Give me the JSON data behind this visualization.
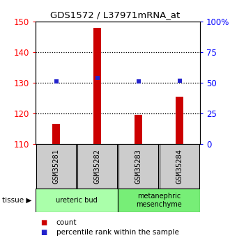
{
  "title": "GDS1572 / L37971mRNA_at",
  "samples": [
    "GSM35281",
    "GSM35282",
    "GSM35283",
    "GSM35284"
  ],
  "counts": [
    116.5,
    148.0,
    119.5,
    125.5
  ],
  "percentiles": [
    51.0,
    54.0,
    51.0,
    52.0
  ],
  "ylim_left": [
    110,
    150
  ],
  "ylim_right": [
    0,
    100
  ],
  "yticks_left": [
    110,
    120,
    130,
    140,
    150
  ],
  "yticks_right": [
    0,
    25,
    50,
    75,
    100
  ],
  "ytick_labels_right": [
    "0",
    "25",
    "50",
    "75",
    "100%"
  ],
  "bar_color": "#cc0000",
  "dot_color": "#2222cc",
  "bar_bottom": 110,
  "bar_width": 0.18,
  "tissues": [
    {
      "label": "ureteric bud",
      "samples": [
        0,
        1
      ],
      "color": "#aaffaa"
    },
    {
      "label": "metanephric\nmesenchyme",
      "samples": [
        2,
        3
      ],
      "color": "#77ee77"
    }
  ],
  "tissue_label": "tissue",
  "legend_count_label": "count",
  "legend_pct_label": "percentile rank within the sample",
  "sample_box_color": "#cccccc",
  "gridline_yticks": [
    120,
    130,
    140
  ],
  "dot_size": 4.5
}
